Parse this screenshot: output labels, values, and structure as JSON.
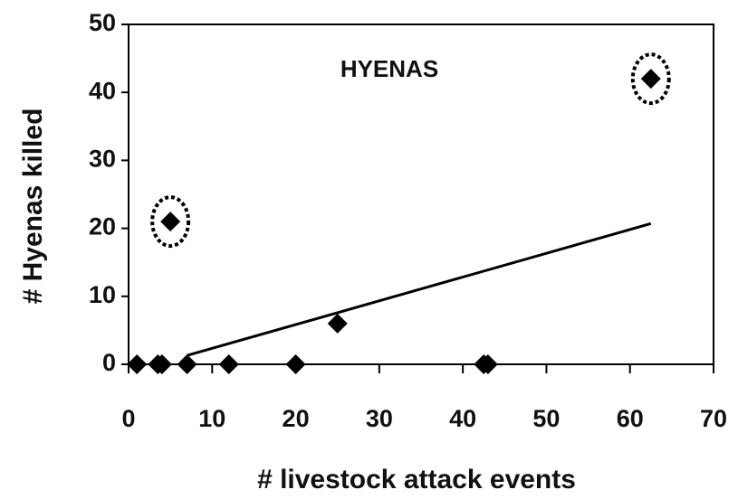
{
  "chart_data": {
    "type": "scatter",
    "title": "HYENAS",
    "x_label": "# livestock attack events",
    "y_label": "# Hyenas killed",
    "series": [
      {
        "name": "points",
        "color": "#000000",
        "x": [
          1,
          3.5,
          4,
          7,
          12,
          20,
          25,
          42.5,
          43,
          5,
          62.5
        ],
        "values": [
          0,
          0,
          0,
          0,
          0,
          0,
          6,
          0,
          0,
          21,
          42
        ]
      },
      {
        "name": "trend",
        "type": "line",
        "color": "#000000",
        "x": [
          7,
          62.5
        ],
        "values": [
          1.3,
          20.7
        ]
      }
    ],
    "xlim": [
      0,
      70
    ],
    "xticks": [
      0,
      10,
      20,
      30,
      40,
      50,
      60,
      70
    ],
    "ylim": [
      0,
      50
    ],
    "yticks": [
      0,
      10,
      20,
      30,
      40,
      50
    ],
    "grid": false
  }
}
